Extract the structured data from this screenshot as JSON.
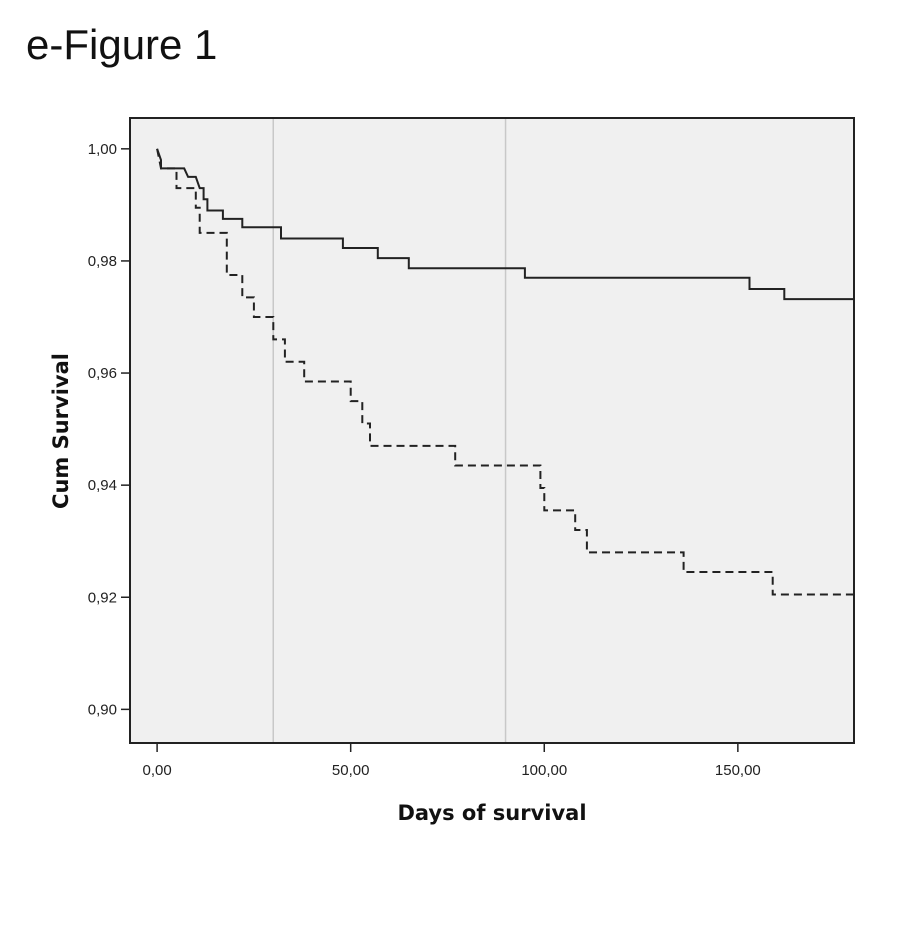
{
  "figure": {
    "title": "e-Figure 1"
  },
  "chart_data": {
    "type": "line",
    "subtype": "kaplan-meier-step",
    "xlabel": "Days of survival",
    "ylabel": "Cum Survival",
    "xlim": [
      -7,
      180
    ],
    "ylim": [
      0.894,
      1.0055
    ],
    "x_ticks": [
      0,
      50,
      100,
      150
    ],
    "x_tick_labels": [
      "0,00",
      "50,00",
      "100,00",
      "150,00"
    ],
    "y_ticks": [
      0.9,
      0.92,
      0.94,
      0.96,
      0.98,
      1.0
    ],
    "y_tick_labels": [
      "0,90",
      "0,92",
      "0,94",
      "0,96",
      "0,98",
      "1,00"
    ],
    "reference_lines_x": [
      30,
      90
    ],
    "grid": false,
    "legend": "none",
    "background": "#f0f0f0",
    "series": [
      {
        "style": "solid",
        "color": "#222222",
        "points": [
          [
            0,
            1.0
          ],
          [
            1,
            0.998
          ],
          [
            1,
            0.9965
          ],
          [
            7,
            0.9965
          ],
          [
            8,
            0.995
          ],
          [
            10,
            0.995
          ],
          [
            11,
            0.993
          ],
          [
            12,
            0.993
          ],
          [
            12,
            0.991
          ],
          [
            13,
            0.991
          ],
          [
            13,
            0.989
          ],
          [
            17,
            0.989
          ],
          [
            17,
            0.9875
          ],
          [
            22,
            0.9875
          ],
          [
            22,
            0.986
          ],
          [
            32,
            0.986
          ],
          [
            32,
            0.984
          ],
          [
            48,
            0.984
          ],
          [
            48,
            0.9823
          ],
          [
            57,
            0.9823
          ],
          [
            57,
            0.9805
          ],
          [
            65,
            0.9805
          ],
          [
            65,
            0.9787
          ],
          [
            95,
            0.9787
          ],
          [
            95,
            0.977
          ],
          [
            153,
            0.977
          ],
          [
            153,
            0.975
          ],
          [
            162,
            0.975
          ],
          [
            162,
            0.9732
          ],
          [
            180,
            0.9732
          ]
        ]
      },
      {
        "style": "dashed",
        "color": "#222222",
        "points": [
          [
            0,
            1.0
          ],
          [
            1,
            0.9965
          ],
          [
            5,
            0.9965
          ],
          [
            5,
            0.993
          ],
          [
            10,
            0.993
          ],
          [
            10,
            0.9895
          ],
          [
            11,
            0.9895
          ],
          [
            11,
            0.985
          ],
          [
            18,
            0.985
          ],
          [
            18,
            0.9775
          ],
          [
            22,
            0.9775
          ],
          [
            22,
            0.9735
          ],
          [
            25,
            0.9735
          ],
          [
            25,
            0.97
          ],
          [
            30,
            0.97
          ],
          [
            30,
            0.966
          ],
          [
            33,
            0.966
          ],
          [
            33,
            0.962
          ],
          [
            38,
            0.962
          ],
          [
            38,
            0.9585
          ],
          [
            50,
            0.9585
          ],
          [
            50,
            0.955
          ],
          [
            53,
            0.955
          ],
          [
            53,
            0.951
          ],
          [
            55,
            0.951
          ],
          [
            55,
            0.947
          ],
          [
            77,
            0.947
          ],
          [
            77,
            0.9435
          ],
          [
            99,
            0.9435
          ],
          [
            99,
            0.9395
          ],
          [
            100,
            0.9395
          ],
          [
            100,
            0.9355
          ],
          [
            108,
            0.9355
          ],
          [
            108,
            0.932
          ],
          [
            111,
            0.932
          ],
          [
            111,
            0.928
          ],
          [
            136,
            0.928
          ],
          [
            136,
            0.9245
          ],
          [
            159,
            0.9245
          ],
          [
            159,
            0.9205
          ],
          [
            180,
            0.9205
          ]
        ]
      }
    ]
  }
}
